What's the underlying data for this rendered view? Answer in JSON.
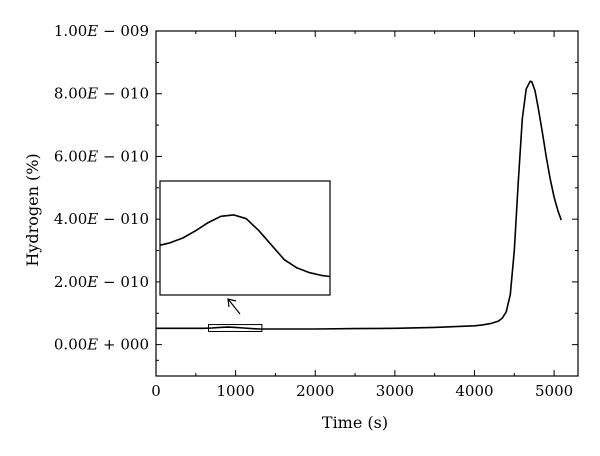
{
  "chart_data": {
    "type": "line",
    "title": "",
    "xlabel": "Time (s)",
    "ylabel": "Hydrogen (%)",
    "xlim": [
      0,
      5300
    ],
    "ylim": [
      -1e-10,
      1e-09
    ],
    "x_ticks": [
      0,
      1000,
      2000,
      3000,
      4000,
      5000
    ],
    "x_tick_labels": [
      "0",
      "1000",
      "2000",
      "3000",
      "4000",
      "5000"
    ],
    "y_ticks": [
      0,
      2e-10,
      4e-10,
      6e-10,
      8e-10,
      1e-09
    ],
    "y_tick_labels": [
      {
        "mantissa": "0.00",
        "letter": "E",
        "op": "+",
        "exp": "000"
      },
      {
        "mantissa": "2.00",
        "letter": "E",
        "op": "−",
        "exp": "010"
      },
      {
        "mantissa": "4.00",
        "letter": "E",
        "op": "−",
        "exp": "010"
      },
      {
        "mantissa": "6.00",
        "letter": "E",
        "op": "−",
        "exp": "010"
      },
      {
        "mantissa": "8.00",
        "letter": "E",
        "op": "−",
        "exp": "010"
      },
      {
        "mantissa": "1.00",
        "letter": "E",
        "op": "−",
        "exp": "009"
      }
    ],
    "grid": false,
    "legend": "none",
    "line_color": "#000000",
    "series": [
      {
        "x": [
          0,
          200,
          400,
          600,
          700,
          800,
          900,
          1000,
          1100,
          1200,
          1300,
          1500,
          2000,
          2500,
          3000,
          3500,
          3800,
          4000,
          4100,
          4200,
          4300,
          4350,
          4400,
          4450,
          4500,
          4550,
          4600,
          4650,
          4700,
          4720,
          4760,
          4800,
          4850,
          4900,
          4950,
          5000,
          5050,
          5090
        ],
        "y": [
          5.2e-11,
          5.2e-11,
          5.2e-11,
          5.2e-11,
          5.3e-11,
          5.5e-11,
          5.6e-11,
          5.5e-11,
          5.3e-11,
          5.1e-11,
          5e-11,
          5e-11,
          5e-11,
          5.1e-11,
          5.2e-11,
          5.5e-11,
          5.8e-11,
          6e-11,
          6.3e-11,
          6.7e-11,
          7.5e-11,
          8.5e-11,
          1.05e-10,
          1.6e-10,
          3e-10,
          5.2e-10,
          7.2e-10,
          8.15e-10,
          8.4e-10,
          8.38e-10,
          8.1e-10,
          7.55e-10,
          6.8e-10,
          6e-10,
          5.3e-10,
          4.7e-10,
          4.25e-10,
          3.97e-10
        ]
      }
    ],
    "inset": {
      "x_range": [
        660,
        1330
      ],
      "y_range": [
        4.2e-11,
        6.4e-11
      ],
      "x": [
        660,
        700,
        750,
        800,
        850,
        900,
        950,
        1000,
        1050,
        1100,
        1150,
        1200,
        1250,
        1300,
        1330
      ],
      "y": [
        5.15e-11,
        5.2e-11,
        5.3e-11,
        5.45e-11,
        5.62e-11,
        5.75e-11,
        5.78e-11,
        5.7e-11,
        5.45e-11,
        5.15e-11,
        4.85e-11,
        4.68e-11,
        4.58e-11,
        4.52e-11,
        4.5e-11
      ]
    }
  }
}
